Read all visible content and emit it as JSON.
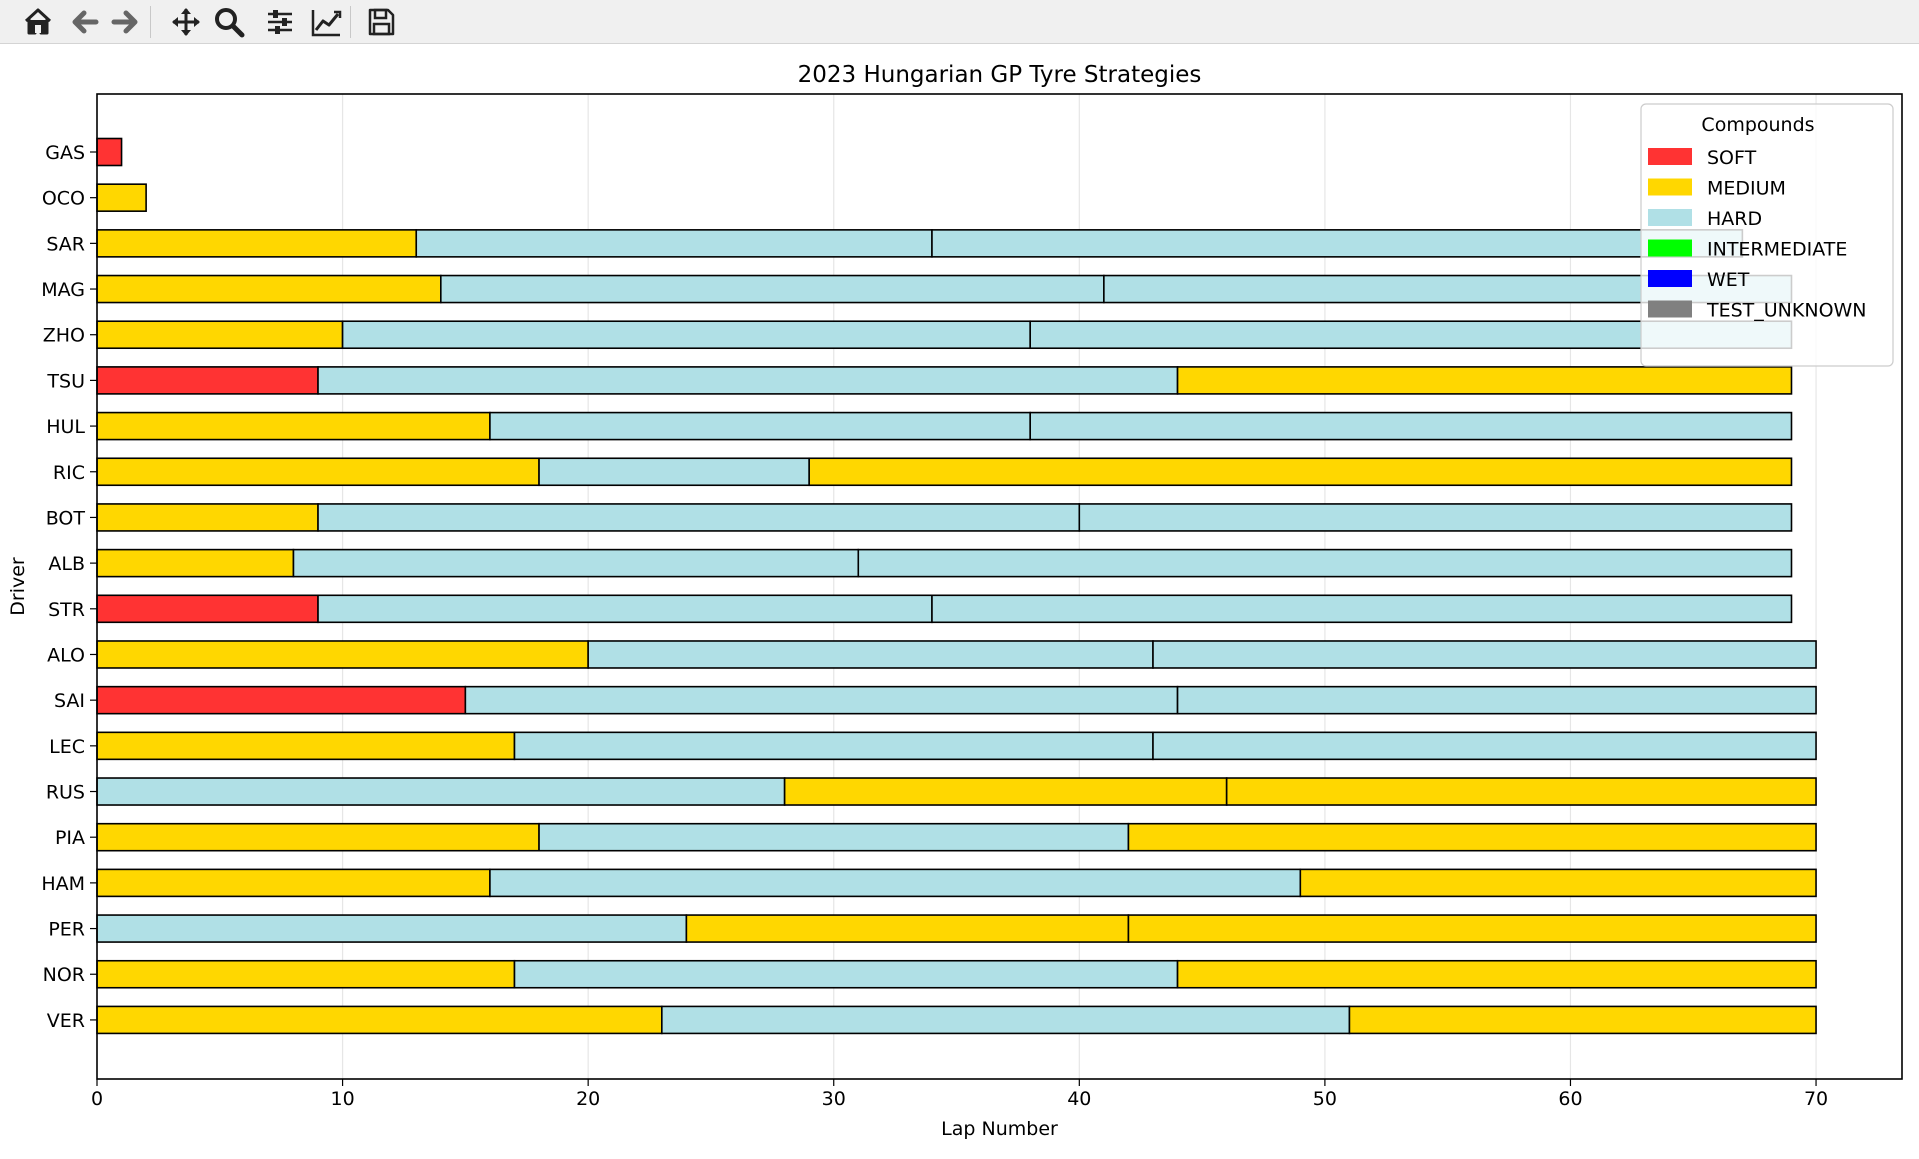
{
  "toolbar": {
    "buttons": [
      {
        "name": "home-icon"
      },
      {
        "name": "back-arrow-icon"
      },
      {
        "name": "forward-arrow-icon"
      },
      {
        "name": "pan-move-icon"
      },
      {
        "name": "zoom-magnifier-icon"
      },
      {
        "name": "configure-subplots-icon"
      },
      {
        "name": "edit-axis-line-icon"
      },
      {
        "name": "save-floppy-icon"
      }
    ]
  },
  "colors": {
    "SOFT": "#ff3333",
    "MEDIUM": "#ffd700",
    "HARD": "#b0e0e6",
    "INTERMEDIATE": "#00ff00",
    "WET": "#0000ff",
    "TEST_UNKNOWN": "#808080"
  },
  "chart_data": {
    "type": "bar",
    "orientation": "horizontal-stacked",
    "title": "2023 Hungarian GP Tyre Strategies",
    "xlabel": "Lap Number",
    "ylabel": "Driver",
    "xlim": [
      0,
      73.5
    ],
    "xticks": [
      0,
      10,
      20,
      30,
      40,
      50,
      60,
      70
    ],
    "grid": "x-axis vertical lines",
    "legend": {
      "title": "Compounds",
      "placement": "top-right",
      "entries": [
        "SOFT",
        "MEDIUM",
        "HARD",
        "INTERMEDIATE",
        "WET",
        "TEST_UNKNOWN"
      ]
    },
    "drivers": [
      {
        "driver": "GAS",
        "stints": [
          {
            "compound": "SOFT",
            "start": 0,
            "end": 1
          }
        ]
      },
      {
        "driver": "OCO",
        "stints": [
          {
            "compound": "MEDIUM",
            "start": 0,
            "end": 2
          }
        ]
      },
      {
        "driver": "SAR",
        "stints": [
          {
            "compound": "MEDIUM",
            "start": 0,
            "end": 13
          },
          {
            "compound": "HARD",
            "start": 13,
            "end": 34
          },
          {
            "compound": "HARD",
            "start": 34,
            "end": 67
          }
        ]
      },
      {
        "driver": "MAG",
        "stints": [
          {
            "compound": "MEDIUM",
            "start": 0,
            "end": 14
          },
          {
            "compound": "HARD",
            "start": 14,
            "end": 41
          },
          {
            "compound": "HARD",
            "start": 41,
            "end": 69
          }
        ]
      },
      {
        "driver": "ZHO",
        "stints": [
          {
            "compound": "MEDIUM",
            "start": 0,
            "end": 10
          },
          {
            "compound": "HARD",
            "start": 10,
            "end": 38
          },
          {
            "compound": "HARD",
            "start": 38,
            "end": 69
          }
        ]
      },
      {
        "driver": "TSU",
        "stints": [
          {
            "compound": "SOFT",
            "start": 0,
            "end": 9
          },
          {
            "compound": "HARD",
            "start": 9,
            "end": 44
          },
          {
            "compound": "MEDIUM",
            "start": 44,
            "end": 69
          }
        ]
      },
      {
        "driver": "HUL",
        "stints": [
          {
            "compound": "MEDIUM",
            "start": 0,
            "end": 16
          },
          {
            "compound": "HARD",
            "start": 16,
            "end": 38
          },
          {
            "compound": "HARD",
            "start": 38,
            "end": 69
          }
        ]
      },
      {
        "driver": "RIC",
        "stints": [
          {
            "compound": "MEDIUM",
            "start": 0,
            "end": 18
          },
          {
            "compound": "HARD",
            "start": 18,
            "end": 29
          },
          {
            "compound": "MEDIUM",
            "start": 29,
            "end": 69
          }
        ]
      },
      {
        "driver": "BOT",
        "stints": [
          {
            "compound": "MEDIUM",
            "start": 0,
            "end": 9
          },
          {
            "compound": "HARD",
            "start": 9,
            "end": 40
          },
          {
            "compound": "HARD",
            "start": 40,
            "end": 69
          }
        ]
      },
      {
        "driver": "ALB",
        "stints": [
          {
            "compound": "MEDIUM",
            "start": 0,
            "end": 8
          },
          {
            "compound": "HARD",
            "start": 8,
            "end": 31
          },
          {
            "compound": "HARD",
            "start": 31,
            "end": 69
          }
        ]
      },
      {
        "driver": "STR",
        "stints": [
          {
            "compound": "SOFT",
            "start": 0,
            "end": 9
          },
          {
            "compound": "HARD",
            "start": 9,
            "end": 34
          },
          {
            "compound": "HARD",
            "start": 34,
            "end": 69
          }
        ]
      },
      {
        "driver": "ALO",
        "stints": [
          {
            "compound": "MEDIUM",
            "start": 0,
            "end": 20
          },
          {
            "compound": "HARD",
            "start": 20,
            "end": 43
          },
          {
            "compound": "HARD",
            "start": 43,
            "end": 70
          }
        ]
      },
      {
        "driver": "SAI",
        "stints": [
          {
            "compound": "SOFT",
            "start": 0,
            "end": 15
          },
          {
            "compound": "HARD",
            "start": 15,
            "end": 44
          },
          {
            "compound": "HARD",
            "start": 44,
            "end": 70
          }
        ]
      },
      {
        "driver": "LEC",
        "stints": [
          {
            "compound": "MEDIUM",
            "start": 0,
            "end": 17
          },
          {
            "compound": "HARD",
            "start": 17,
            "end": 43
          },
          {
            "compound": "HARD",
            "start": 43,
            "end": 70
          }
        ]
      },
      {
        "driver": "RUS",
        "stints": [
          {
            "compound": "HARD",
            "start": 0,
            "end": 28
          },
          {
            "compound": "MEDIUM",
            "start": 28,
            "end": 46
          },
          {
            "compound": "MEDIUM",
            "start": 46,
            "end": 70
          }
        ]
      },
      {
        "driver": "PIA",
        "stints": [
          {
            "compound": "MEDIUM",
            "start": 0,
            "end": 18
          },
          {
            "compound": "HARD",
            "start": 18,
            "end": 42
          },
          {
            "compound": "MEDIUM",
            "start": 42,
            "end": 70
          }
        ]
      },
      {
        "driver": "HAM",
        "stints": [
          {
            "compound": "MEDIUM",
            "start": 0,
            "end": 16
          },
          {
            "compound": "HARD",
            "start": 16,
            "end": 49
          },
          {
            "compound": "MEDIUM",
            "start": 49,
            "end": 70
          }
        ]
      },
      {
        "driver": "PER",
        "stints": [
          {
            "compound": "HARD",
            "start": 0,
            "end": 24
          },
          {
            "compound": "MEDIUM",
            "start": 24,
            "end": 42
          },
          {
            "compound": "MEDIUM",
            "start": 42,
            "end": 70
          }
        ]
      },
      {
        "driver": "NOR",
        "stints": [
          {
            "compound": "MEDIUM",
            "start": 0,
            "end": 17
          },
          {
            "compound": "HARD",
            "start": 17,
            "end": 44
          },
          {
            "compound": "MEDIUM",
            "start": 44,
            "end": 70
          }
        ]
      },
      {
        "driver": "VER",
        "stints": [
          {
            "compound": "MEDIUM",
            "start": 0,
            "end": 23
          },
          {
            "compound": "HARD",
            "start": 23,
            "end": 51
          },
          {
            "compound": "MEDIUM",
            "start": 51,
            "end": 70
          }
        ]
      }
    ]
  }
}
